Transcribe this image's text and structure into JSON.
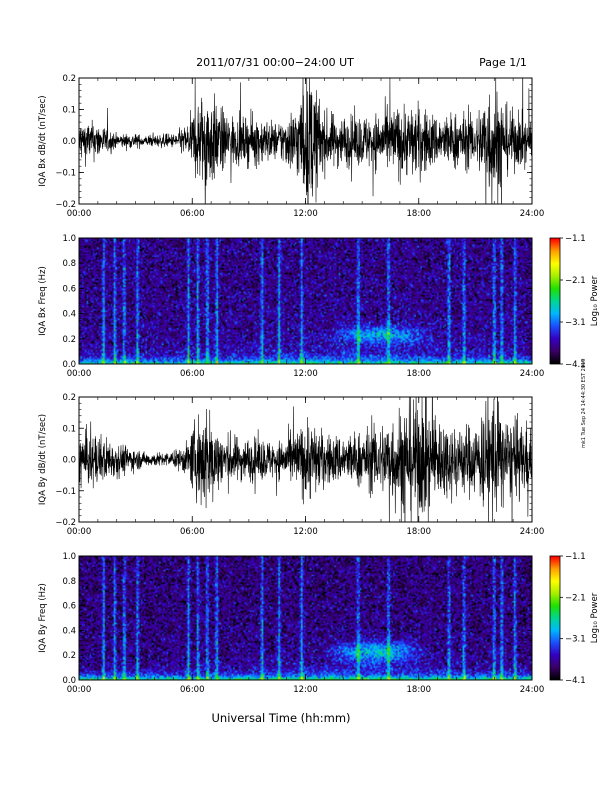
{
  "header": {
    "title": "2011/07/31   00:00−24:00  UT",
    "page": "Page 1/1"
  },
  "side_note": "mk1 Tue Sep 24 14:44:30 EST 2019",
  "xlabel": "Universal Time (hh:mm)",
  "colorbar": {
    "label": "Log₁₀ Power",
    "ticks": [
      "−1.1",
      "−2.1",
      "−3.1",
      "−4.1"
    ],
    "range": [
      -4.1,
      -1.1
    ],
    "colors": [
      "#000000",
      "#3a0068",
      "#3400c4",
      "#1a50ff",
      "#00b8ff",
      "#00d890",
      "#20e000",
      "#a8f000",
      "#ffff00",
      "#ffa000",
      "#ff0000"
    ]
  },
  "chart_data": [
    {
      "type": "line",
      "title": "",
      "ylabel": "IQA Bx dB/dt (nT/sec)",
      "xlabel": "",
      "xlim": [
        "00:00",
        "24:00"
      ],
      "x_ticks": [
        "00:00",
        "06:00",
        "12:00",
        "18:00",
        "24:00"
      ],
      "ylim": [
        -0.2,
        0.2
      ],
      "y_ticks": [
        "−0.2",
        "−0.1",
        "0.0",
        "0.1",
        "0.2"
      ],
      "series": [
        {
          "line_color": "#000000",
          "amplitude_envelope": [
            {
              "t": 0.0,
              "amp": 0.06
            },
            {
              "t": 1.0,
              "amp": 0.05
            },
            {
              "t": 2.0,
              "amp": 0.02
            },
            {
              "t": 3.0,
              "amp": 0.02
            },
            {
              "t": 3.5,
              "amp": 0.015
            },
            {
              "t": 5.0,
              "amp": 0.02
            },
            {
              "t": 5.8,
              "amp": 0.05
            },
            {
              "t": 6.3,
              "amp": 0.12
            },
            {
              "t": 6.8,
              "amp": 0.15
            },
            {
              "t": 7.5,
              "amp": 0.09
            },
            {
              "t": 8.5,
              "amp": 0.06
            },
            {
              "t": 9.5,
              "amp": 0.07
            },
            {
              "t": 10.5,
              "amp": 0.05
            },
            {
              "t": 11.5,
              "amp": 0.1
            },
            {
              "t": 12.2,
              "amp": 0.2
            },
            {
              "t": 13.0,
              "amp": 0.08
            },
            {
              "t": 14.0,
              "amp": 0.07
            },
            {
              "t": 15.0,
              "amp": 0.07
            },
            {
              "t": 16.0,
              "amp": 0.08
            },
            {
              "t": 17.0,
              "amp": 0.1
            },
            {
              "t": 18.0,
              "amp": 0.1
            },
            {
              "t": 19.0,
              "amp": 0.07
            },
            {
              "t": 20.0,
              "amp": 0.08
            },
            {
              "t": 21.0,
              "amp": 0.07
            },
            {
              "t": 22.0,
              "amp": 0.2
            },
            {
              "t": 22.5,
              "amp": 0.1
            },
            {
              "t": 23.0,
              "amp": 0.08
            },
            {
              "t": 24.0,
              "amp": 0.06
            }
          ]
        }
      ]
    },
    {
      "type": "heatmap",
      "title": "",
      "ylabel": "IQA Bx Freq (Hz)",
      "xlabel": "",
      "xlim": [
        "00:00",
        "24:00"
      ],
      "x_ticks": [
        "00:00",
        "06:00",
        "12:00",
        "18:00",
        "24:00"
      ],
      "ylim": [
        0.0,
        1.0
      ],
      "y_ticks": [
        "0.0",
        "0.2",
        "0.4",
        "0.6",
        "0.8",
        "1.0"
      ],
      "value_range_log10_power": [
        -4.1,
        -1.1
      ],
      "background_log10_power": -3.7,
      "low_freq_band": {
        "freq_hz": 0.0,
        "log10_power": -2.6
      },
      "pc1_band": {
        "start_hour": 13.0,
        "end_hour": 19.0,
        "freq_hz": [
          0.2,
          0.26
        ],
        "log10_power": -3.0
      },
      "broadband_bursts_hours": [
        1.3,
        1.9,
        2.4,
        3.1,
        5.8,
        6.3,
        6.8,
        7.3,
        9.7,
        10.6,
        11.8,
        14.8,
        16.4,
        19.6,
        20.4,
        22.0,
        22.4,
        23.1
      ]
    },
    {
      "type": "line",
      "title": "",
      "ylabel": "IQA By dB/dt (nT/sec)",
      "xlabel": "",
      "xlim": [
        "00:00",
        "24:00"
      ],
      "x_ticks": [
        "00:00",
        "06:00",
        "12:00",
        "18:00",
        "24:00"
      ],
      "ylim": [
        -0.2,
        0.2
      ],
      "y_ticks": [
        "−0.2",
        "−0.1",
        "0.0",
        "0.1",
        "0.2"
      ],
      "series": [
        {
          "line_color": "#000000",
          "amplitude_envelope": [
            {
              "t": 0.0,
              "amp": 0.08
            },
            {
              "t": 1.0,
              "amp": 0.07
            },
            {
              "t": 2.0,
              "amp": 0.05
            },
            {
              "t": 3.0,
              "amp": 0.03
            },
            {
              "t": 3.5,
              "amp": 0.02
            },
            {
              "t": 5.0,
              "amp": 0.02
            },
            {
              "t": 5.8,
              "amp": 0.05
            },
            {
              "t": 6.3,
              "amp": 0.13
            },
            {
              "t": 6.8,
              "amp": 0.15
            },
            {
              "t": 7.5,
              "amp": 0.08
            },
            {
              "t": 8.5,
              "amp": 0.06
            },
            {
              "t": 9.5,
              "amp": 0.06
            },
            {
              "t": 10.5,
              "amp": 0.05
            },
            {
              "t": 11.5,
              "amp": 0.08
            },
            {
              "t": 12.2,
              "amp": 0.12
            },
            {
              "t": 13.0,
              "amp": 0.07
            },
            {
              "t": 14.0,
              "amp": 0.07
            },
            {
              "t": 15.0,
              "amp": 0.08
            },
            {
              "t": 16.0,
              "amp": 0.1
            },
            {
              "t": 17.0,
              "amp": 0.15
            },
            {
              "t": 18.0,
              "amp": 0.18
            },
            {
              "t": 19.0,
              "amp": 0.12
            },
            {
              "t": 20.0,
              "amp": 0.1
            },
            {
              "t": 21.0,
              "amp": 0.1
            },
            {
              "t": 22.0,
              "amp": 0.2
            },
            {
              "t": 22.5,
              "amp": 0.12
            },
            {
              "t": 23.0,
              "amp": 0.1
            },
            {
              "t": 24.0,
              "amp": 0.1
            }
          ]
        }
      ]
    },
    {
      "type": "heatmap",
      "title": "",
      "ylabel": "IQA By Freq (Hz)",
      "xlabel": "Universal Time (hh:mm)",
      "xlim": [
        "00:00",
        "24:00"
      ],
      "x_ticks": [
        "00:00",
        "06:00",
        "12:00",
        "18:00",
        "24:00"
      ],
      "ylim": [
        0.0,
        1.0
      ],
      "y_ticks": [
        "0.0",
        "0.2",
        "0.4",
        "0.6",
        "0.8",
        "1.0"
      ],
      "value_range_log10_power": [
        -4.1,
        -1.1
      ],
      "background_log10_power": -3.75,
      "low_freq_band": {
        "freq_hz": 0.0,
        "log10_power": -2.5
      },
      "pc1_band": {
        "start_hour": 13.0,
        "end_hour": 18.5,
        "freq_hz": [
          0.18,
          0.27
        ],
        "log10_power": -2.9
      },
      "broadband_bursts_hours": [
        1.3,
        1.9,
        2.4,
        3.1,
        5.8,
        6.3,
        6.8,
        7.3,
        9.7,
        10.6,
        11.8,
        14.8,
        16.4,
        19.6,
        20.4,
        22.0,
        22.4,
        23.1
      ]
    }
  ]
}
